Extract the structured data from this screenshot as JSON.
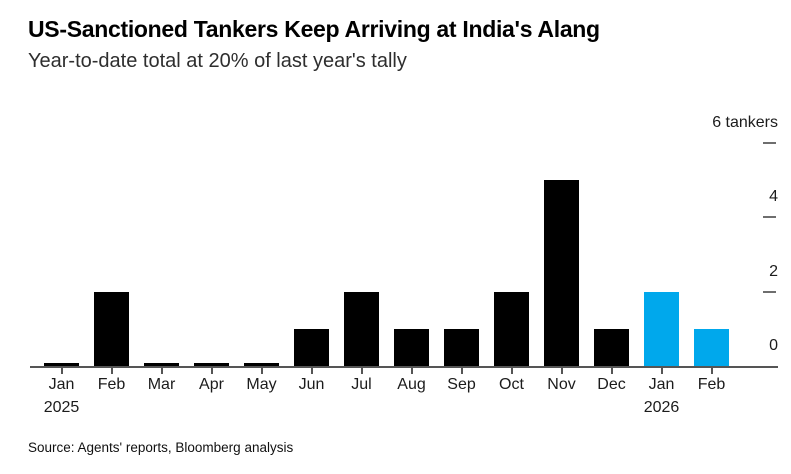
{
  "header": {
    "title": "US-Sanctioned Tankers Keep Arriving at India's Alang",
    "subtitle": "Year-to-date total at 20% of last year's tally"
  },
  "chart_data": {
    "type": "bar",
    "title": "US-Sanctioned Tankers Keep Arriving at India's Alang",
    "subtitle": "Year-to-date total at 20% of last year's tally",
    "categories": [
      "Jan",
      "Feb",
      "Mar",
      "Apr",
      "May",
      "Jun",
      "Jul",
      "Aug",
      "Sep",
      "Oct",
      "Nov",
      "Dec",
      "Jan",
      "Feb"
    ],
    "year_markers": [
      {
        "index": 0,
        "label": "2025"
      },
      {
        "index": 12,
        "label": "2026"
      }
    ],
    "values": [
      0,
      2,
      0,
      0,
      0,
      1,
      2,
      1,
      1,
      2,
      5,
      1,
      2,
      1
    ],
    "highlight_indices": [
      12,
      13
    ],
    "colors": {
      "bar": "#000000",
      "highlight": "#00A8EC"
    },
    "ylim": [
      0,
      6
    ],
    "yticks": [
      0,
      2,
      4,
      6
    ],
    "ytick_top_label": "6 tankers",
    "ylabel": "tankers",
    "xlabel": "",
    "grid": false,
    "legend": "none"
  },
  "footer": {
    "source": "Source: Agents' reports, Bloomberg analysis"
  }
}
